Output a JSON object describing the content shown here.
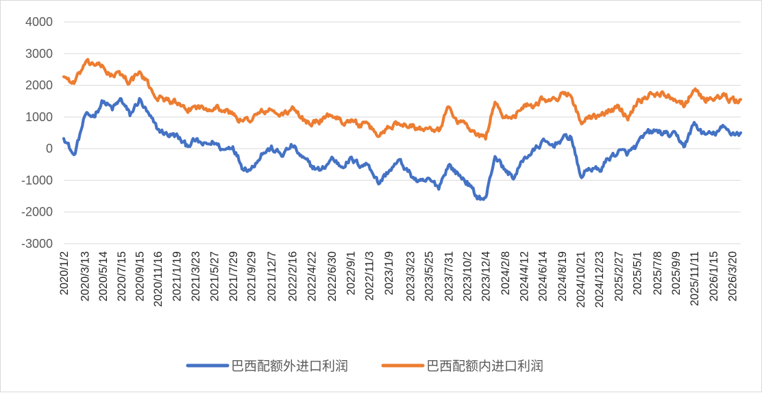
{
  "chart_data": {
    "type": "line",
    "title": "",
    "xlabel": "",
    "ylabel": "",
    "ylim": [
      -3000,
      4000
    ],
    "yticks": [
      4000,
      3000,
      2000,
      1000,
      0,
      -1000,
      -2000,
      -3000
    ],
    "ytick_labels": [
      "4000",
      "3000",
      "2000",
      "1000",
      "0",
      "-1000",
      "-2000",
      "-3000"
    ],
    "grid": "horizontal",
    "legend_position": "bottom",
    "xtick_labels": [
      "2020/1/2",
      "2020/3/13",
      "2020/5/14",
      "2020/7/15",
      "2020/9/15",
      "2020/11/16",
      "2021/1/19",
      "2021/3/23",
      "2021/5/27",
      "2021/7/29",
      "2021/9/29",
      "2021/12/7",
      "2022/2/16",
      "2022/4/22",
      "2022/6/30",
      "2022/9/1",
      "2022/11/3",
      "2023/1/9",
      "2023/3/23",
      "2023/5/25",
      "2023/7/31",
      "2023/10/2",
      "2023/12/4",
      "2024/2/8",
      "2024/4/12",
      "2024/6/14",
      "2024/8/19",
      "2024/10/21",
      "2024/12/23",
      "2025/2/27",
      "2025/5/1",
      "2025/7/8",
      "2025/9/9",
      "2025/11/11",
      "2026/1/15",
      "2026/3/20"
    ],
    "x": [
      "2020/1/2",
      "2020/2/6",
      "2020/3/13",
      "2020/4/14",
      "2020/5/14",
      "2020/6/15",
      "2020/7/15",
      "2020/8/14",
      "2020/9/15",
      "2020/10/16",
      "2020/11/16",
      "2020/12/18",
      "2021/1/19",
      "2021/2/19",
      "2021/3/23",
      "2021/4/25",
      "2021/5/27",
      "2021/6/28",
      "2021/7/29",
      "2021/8/29",
      "2021/9/29",
      "2021/11/3",
      "2021/12/7",
      "2022/1/11",
      "2022/2/16",
      "2022/3/21",
      "2022/4/22",
      "2022/5/26",
      "2022/6/30",
      "2022/8/1",
      "2022/9/1",
      "2022/10/3",
      "2022/11/3",
      "2022/12/6",
      "2023/1/9",
      "2023/2/14",
      "2023/3/23",
      "2023/4/24",
      "2023/5/25",
      "2023/6/28",
      "2023/7/31",
      "2023/8/31",
      "2023/10/2",
      "2023/11/2",
      "2023/12/4",
      "2024/1/5",
      "2024/2/8",
      "2024/3/11",
      "2024/4/12",
      "2024/5/13",
      "2024/6/14",
      "2024/7/17",
      "2024/8/19",
      "2024/9/19",
      "2024/10/21",
      "2024/11/21",
      "2024/12/23",
      "2025/1/24",
      "2025/2/27",
      "2025/3/31",
      "2025/5/1",
      "2025/6/4",
      "2025/7/8",
      "2025/8/8",
      "2025/9/9",
      "2025/10/10",
      "2025/11/11",
      "2025/12/13",
      "2026/1/15",
      "2026/2/16",
      "2026/3/20",
      "2026/4/18"
    ],
    "series": [
      {
        "name": "巴西配额外进口利润",
        "color": "#4472C4",
        "values": [
          400,
          -250,
          1000,
          1050,
          1500,
          1250,
          1550,
          1050,
          1550,
          1050,
          600,
          450,
          400,
          100,
          250,
          100,
          200,
          -50,
          100,
          -550,
          -650,
          -150,
          0,
          -200,
          100,
          -300,
          -550,
          -700,
          -300,
          -550,
          -350,
          -500,
          -500,
          -1100,
          -700,
          -400,
          -800,
          -1100,
          -1000,
          -1200,
          -500,
          -800,
          -1050,
          -1500,
          -1600,
          -200,
          -700,
          -900,
          -300,
          -100,
          200,
          100,
          300,
          400,
          -900,
          -600,
          -700,
          -300,
          -100,
          -150,
          100,
          500,
          550,
          450,
          400,
          100,
          800,
          450,
          450,
          650,
          500,
          500
        ]
      },
      {
        "name": "巴西配额内进口利润",
        "color": "#ED7D31",
        "values": [
          2300,
          2050,
          2650,
          2700,
          2550,
          2300,
          2350,
          2100,
          2400,
          2000,
          1600,
          1550,
          1450,
          1150,
          1350,
          1250,
          1350,
          1200,
          1100,
          850,
          950,
          1150,
          1200,
          1050,
          1250,
          950,
          800,
          900,
          1100,
          850,
          900,
          750,
          700,
          400,
          700,
          800,
          800,
          600,
          750,
          600,
          1300,
          900,
          750,
          400,
          350,
          1500,
          900,
          1050,
          1400,
          1350,
          1600,
          1500,
          1700,
          1750,
          800,
          950,
          1000,
          1200,
          1300,
          1000,
          1500,
          1650,
          1750,
          1700,
          1600,
          1400,
          1900,
          1550,
          1600,
          1650,
          1500,
          1550
        ]
      }
    ]
  }
}
